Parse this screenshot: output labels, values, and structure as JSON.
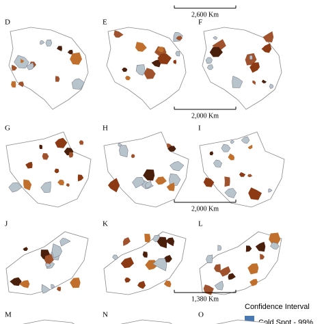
{
  "panels": [
    {
      "label": "D"
    },
    {
      "label": "E"
    },
    {
      "label": "F"
    },
    {
      "label": "G"
    },
    {
      "label": "H"
    },
    {
      "label": "I"
    },
    {
      "label": "J"
    },
    {
      "label": "K"
    },
    {
      "label": "L"
    },
    {
      "label": "M"
    },
    {
      "label": "N"
    },
    {
      "label": "O"
    }
  ],
  "scale_bars": [
    {
      "label": "2,600 Km"
    },
    {
      "label": "2,000 Km"
    },
    {
      "label": "2,000 Km"
    },
    {
      "label": "1,380 Km"
    }
  ],
  "legend": {
    "title": "Confidence Interval",
    "items": [
      "Cold Spot - 99%"
    ]
  }
}
